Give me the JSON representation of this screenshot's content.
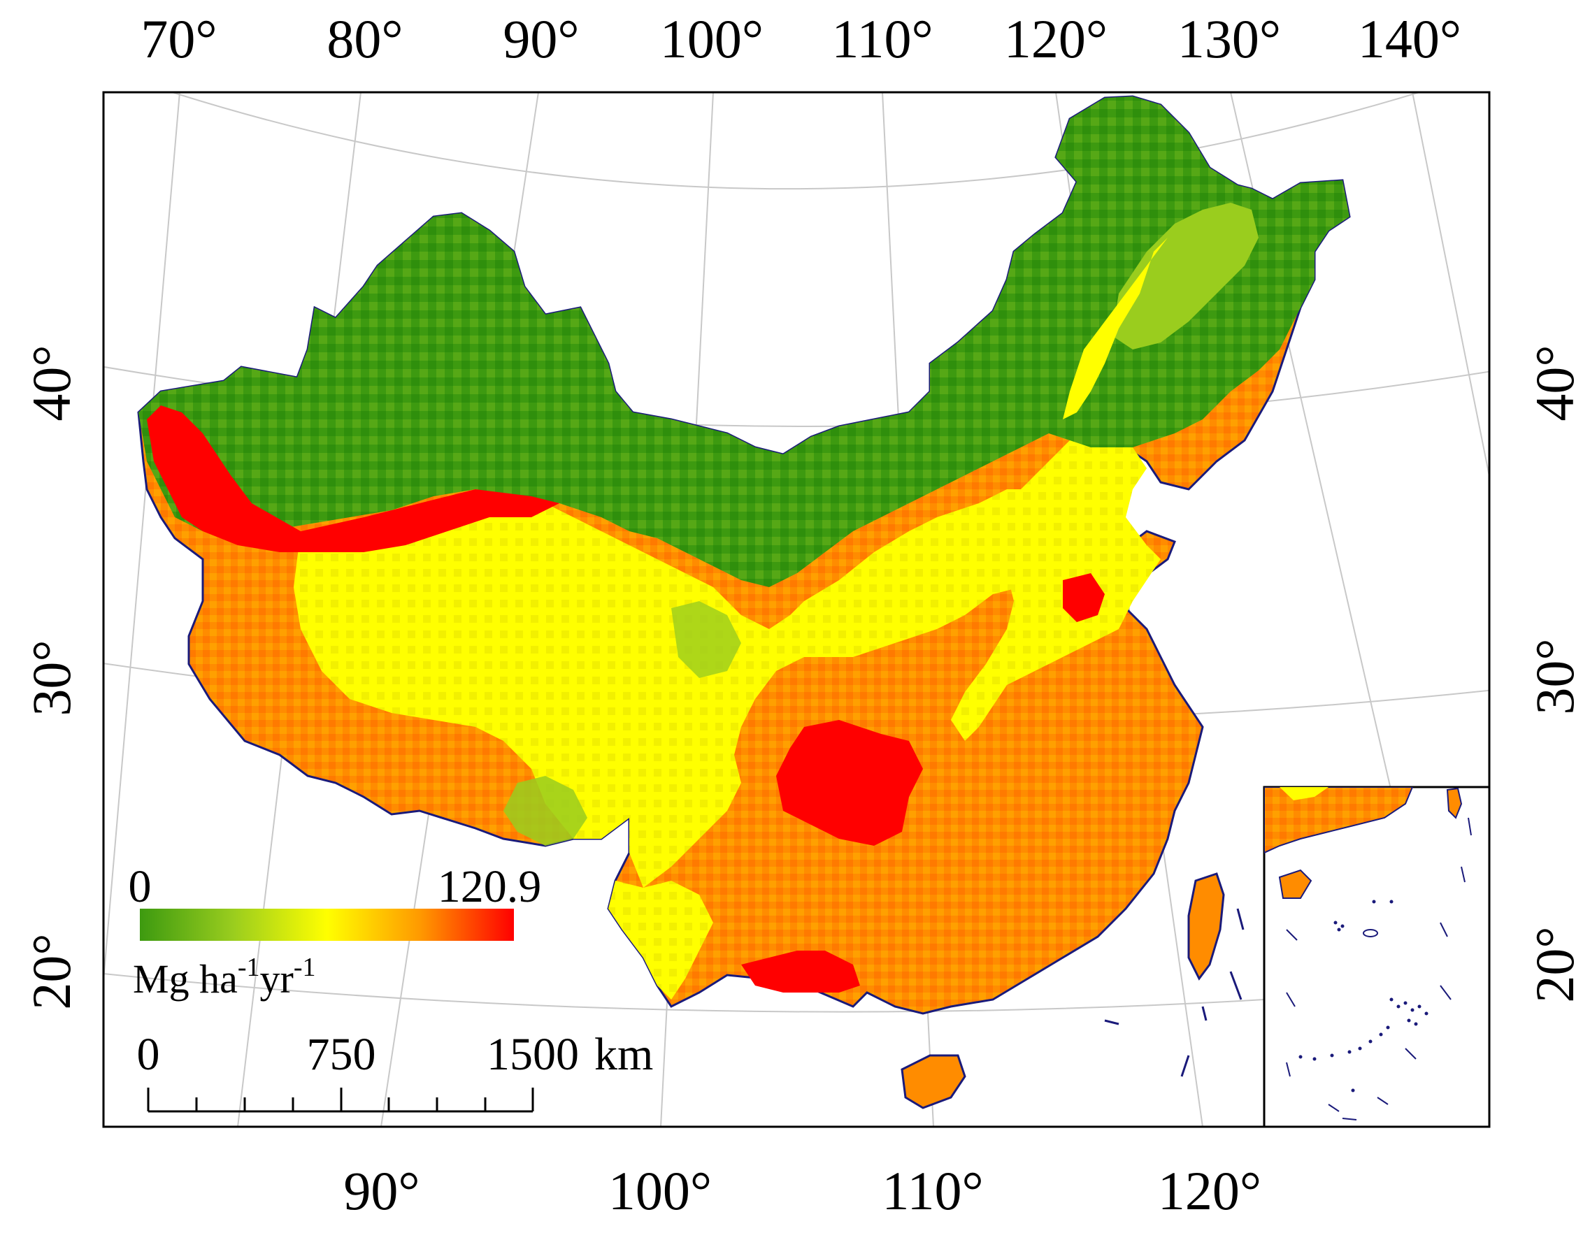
{
  "top_lon_labels": [
    "70°",
    "80°",
    "90°",
    "100°",
    "110°",
    "120°",
    "130°",
    "140°"
  ],
  "bottom_lon_labels": [
    "90°",
    "100°",
    "110°",
    "120°"
  ],
  "left_lat_labels": [
    "40°",
    "30°",
    "20°"
  ],
  "right_lat_labels": [
    "40°",
    "30°",
    "20°"
  ],
  "legend": {
    "min_label": "0",
    "max_label": "120.9",
    "unit_base": "Mg ha",
    "unit_exp1": "-1",
    "unit_mid": "yr",
    "unit_exp2": "-1",
    "colors": [
      "#3d9a10",
      "#9acd1e",
      "#ffff00",
      "#ff9900",
      "#ff0000"
    ]
  },
  "scalebar": {
    "labels": [
      "0",
      "750",
      "1500"
    ],
    "unit": "km"
  },
  "colors": {
    "low": "#3d9a10",
    "mid_low": "#9acd1e",
    "mid": "#ffff00",
    "mid_high": "#ff8c00",
    "high": "#ff0000",
    "boundary": "#1a1a7a",
    "graticule": "#c8c8c8"
  }
}
